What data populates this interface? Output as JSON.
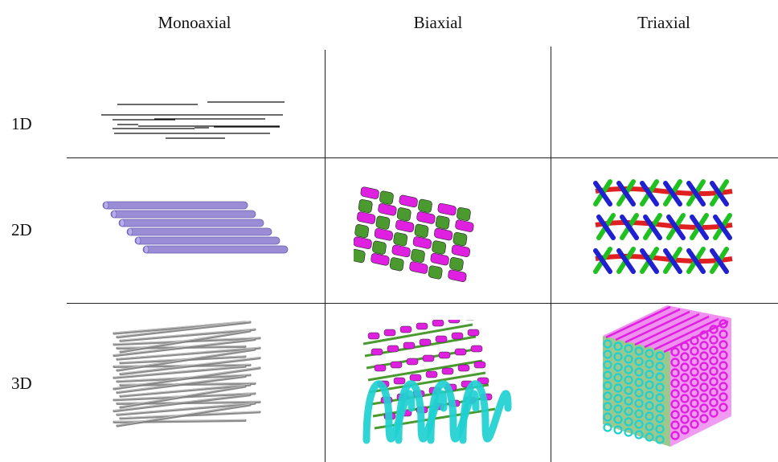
{
  "columns": [
    "Monoaxial",
    "Biaxial",
    "Triaxial"
  ],
  "rows": [
    "1D",
    "2D",
    "3D"
  ],
  "cells": {
    "1d_monoaxial": {
      "illustration": "short-parallel-fiber-lines"
    },
    "1d_biaxial": {
      "illustration": "empty"
    },
    "1d_triaxial": {
      "illustration": "empty"
    },
    "2d_monoaxial": {
      "illustration": "parallel-purple-rods",
      "color": "#9b8cd6"
    },
    "2d_biaxial": {
      "illustration": "plain-woven-fabric",
      "colors": [
        "#e020e0",
        "#4a9a30"
      ]
    },
    "2d_triaxial": {
      "illustration": "triaxial-woven-fabric",
      "colors": [
        "#e02020",
        "#2020d0",
        "#20c020"
      ]
    },
    "3d_monoaxial": {
      "illustration": "3d-fiber-bundle",
      "color": "#808080"
    },
    "3d_biaxial": {
      "illustration": "3d-woven-block",
      "colors": [
        "#e020e0",
        "#20d0d0",
        "#4a9a30"
      ]
    },
    "3d_triaxial": {
      "illustration": "3d-triaxial-cube",
      "colors": [
        "#e020e0",
        "#20d0d0",
        "#4a9a30"
      ]
    }
  }
}
